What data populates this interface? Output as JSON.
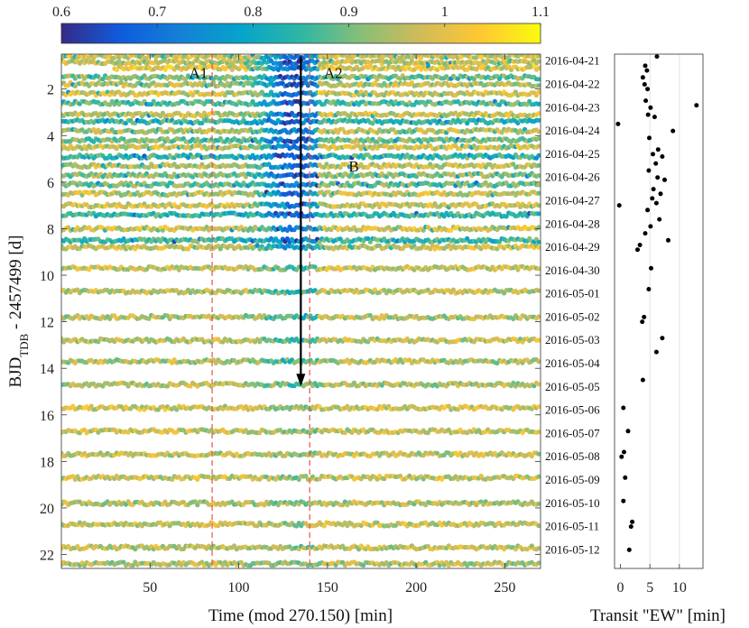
{
  "chart_data": [
    {
      "type": "heatmap",
      "name": "transit-waterfall",
      "xlabel": "Time (mod 270.150) [min]",
      "ylabel_main": "BJD",
      "ylabel_sub": "TDB",
      "ylabel_rest": " - 2457499 [d]",
      "xlim": [
        0,
        270.15
      ],
      "ylim": [
        0.5,
        22.6
      ],
      "x_ticks": [
        50,
        100,
        150,
        200,
        250
      ],
      "y_ticks": [
        2,
        4,
        6,
        8,
        10,
        12,
        14,
        16,
        18,
        20,
        22
      ],
      "colorbar": {
        "range": [
          0.6,
          1.1
        ],
        "ticks": [
          "0.6",
          "0.7",
          "0.8",
          "0.9",
          "1",
          "1.1"
        ],
        "tick_values": [
          0.6,
          0.7,
          0.8,
          0.9,
          1.0,
          1.1
        ],
        "colors": [
          "#352a87",
          "#0f5cdd",
          "#1481d6",
          "#06a4ca",
          "#2eb7a4",
          "#87bf77",
          "#d1bb59",
          "#fec832",
          "#f9fb0e"
        ]
      },
      "vlines": [
        85,
        140
      ],
      "vline_color": "#e8524a",
      "arrow": {
        "x": 135,
        "y_start": 0.6,
        "y_end": 14.7
      },
      "annotations": [
        {
          "label": "A1",
          "x": 72,
          "y": 1.3
        },
        {
          "label": "A2",
          "x": 148,
          "y": 1.3
        },
        {
          "label": "B",
          "x": 162,
          "y": 5.3
        }
      ],
      "dates": [
        "2016-04-21",
        "2016-04-22",
        "2016-04-23",
        "2016-04-24",
        "2016-04-25",
        "2016-04-26",
        "2016-04-27",
        "2016-04-28",
        "2016-04-29",
        "2016-04-30",
        "2016-05-01",
        "2016-05-02",
        "2016-05-03",
        "2016-05-04",
        "2016-05-05",
        "2016-05-06",
        "2016-05-07",
        "2016-05-08",
        "2016-05-09",
        "2016-05-10",
        "2016-05-11",
        "2016-05-12"
      ],
      "date_positions": [
        0.8,
        1.8,
        2.8,
        3.8,
        4.8,
        5.8,
        6.8,
        7.8,
        8.8,
        9.8,
        10.8,
        11.8,
        12.8,
        13.8,
        14.8,
        15.8,
        16.8,
        17.8,
        18.8,
        19.8,
        20.8,
        21.8
      ],
      "bands": [
        {
          "y": 0.6,
          "start": 0,
          "end": 270,
          "base": 0.98,
          "dip": 0.68
        },
        {
          "y": 0.85,
          "start": 0,
          "end": 270,
          "base": 0.96,
          "dip": 0.66
        },
        {
          "y": 1.1,
          "start": 30,
          "end": 270,
          "base": 1.0,
          "dip": 0.72
        },
        {
          "y": 1.5,
          "start": 0,
          "end": 270,
          "base": 0.9,
          "dip": 0.68
        },
        {
          "y": 1.8,
          "start": 0,
          "end": 270,
          "base": 0.95,
          "dip": 0.66
        },
        {
          "y": 2.2,
          "start": 0,
          "end": 270,
          "base": 0.98,
          "dip": 0.7
        },
        {
          "y": 2.6,
          "start": 0,
          "end": 270,
          "base": 0.88,
          "dip": 0.66
        },
        {
          "y": 3.1,
          "start": 0,
          "end": 270,
          "base": 0.97,
          "dip": 0.68
        },
        {
          "y": 3.4,
          "start": 0,
          "end": 270,
          "base": 0.85,
          "dip": 0.7
        },
        {
          "y": 3.8,
          "start": 0,
          "end": 270,
          "base": 0.95,
          "dip": 0.7
        },
        {
          "y": 4.2,
          "start": 0,
          "end": 270,
          "base": 0.9,
          "dip": 0.65
        },
        {
          "y": 4.5,
          "start": 0,
          "end": 270,
          "base": 0.98,
          "dip": 0.7
        },
        {
          "y": 4.9,
          "start": 0,
          "end": 270,
          "base": 0.85,
          "dip": 0.64
        },
        {
          "y": 5.3,
          "start": 0,
          "end": 270,
          "base": 0.96,
          "dip": 0.7
        },
        {
          "y": 5.7,
          "start": 0,
          "end": 270,
          "base": 0.92,
          "dip": 0.66
        },
        {
          "y": 6.1,
          "start": 0,
          "end": 270,
          "base": 0.9,
          "dip": 0.7
        },
        {
          "y": 6.5,
          "start": 0,
          "end": 270,
          "base": 0.97,
          "dip": 0.7
        },
        {
          "y": 7.0,
          "start": 0,
          "end": 270,
          "base": 0.98,
          "dip": 0.72
        },
        {
          "y": 7.4,
          "start": 0,
          "end": 270,
          "base": 0.85,
          "dip": 0.7
        },
        {
          "y": 8.0,
          "start": 0,
          "end": 270,
          "base": 0.98,
          "dip": 0.72
        },
        {
          "y": 8.5,
          "start": 0,
          "end": 270,
          "base": 0.86,
          "dip": 0.72
        },
        {
          "y": 8.8,
          "start": 0,
          "end": 270,
          "base": 0.97,
          "dip": 0.75
        },
        {
          "y": 9.7,
          "start": 0,
          "end": 270,
          "base": 0.97,
          "dip": 0.85
        },
        {
          "y": 10.7,
          "start": 0,
          "end": 270,
          "base": 0.96,
          "dip": 0.85
        },
        {
          "y": 11.8,
          "start": 0,
          "end": 270,
          "base": 0.95,
          "dip": 0.84
        },
        {
          "y": 12.8,
          "start": 0,
          "end": 270,
          "base": 0.96,
          "dip": 0.86
        },
        {
          "y": 13.7,
          "start": 0,
          "end": 270,
          "base": 0.95,
          "dip": 0.86
        },
        {
          "y": 14.7,
          "start": 0,
          "end": 270,
          "base": 0.95,
          "dip": 0.88
        },
        {
          "y": 15.7,
          "start": 0,
          "end": 270,
          "base": 0.98,
          "dip": 0.92
        },
        {
          "y": 16.7,
          "start": 0,
          "end": 270,
          "base": 0.97,
          "dip": 0.92
        },
        {
          "y": 17.7,
          "start": 0,
          "end": 270,
          "base": 0.96,
          "dip": 0.92
        },
        {
          "y": 18.7,
          "start": 0,
          "end": 270,
          "base": 0.97,
          "dip": 0.93
        },
        {
          "y": 19.8,
          "start": 0,
          "end": 270,
          "base": 0.95,
          "dip": 0.92
        },
        {
          "y": 20.7,
          "start": 0,
          "end": 270,
          "base": 0.97,
          "dip": 0.93
        },
        {
          "y": 21.7,
          "start": 0,
          "end": 270,
          "base": 0.96,
          "dip": 0.92
        },
        {
          "y": 22.4,
          "start": 0,
          "end": 270,
          "base": 0.95,
          "dip": 0.92
        }
      ]
    },
    {
      "type": "scatter",
      "name": "transit-ew",
      "xlabel": "Transit \"EW\" [min]",
      "xlim": [
        -1,
        14
      ],
      "x_ticks": [
        0,
        5,
        10
      ],
      "grid_x": [
        5,
        10
      ],
      "points": [
        {
          "x": 6.2,
          "y": 0.6
        },
        {
          "x": 4.2,
          "y": 1.0
        },
        {
          "x": 4.5,
          "y": 1.2
        },
        {
          "x": 3.8,
          "y": 1.5
        },
        {
          "x": 4.1,
          "y": 1.8
        },
        {
          "x": 4.6,
          "y": 2.0
        },
        {
          "x": 4.3,
          "y": 2.5
        },
        {
          "x": 12.9,
          "y": 2.7
        },
        {
          "x": 5.1,
          "y": 2.8
        },
        {
          "x": 4.7,
          "y": 3.1
        },
        {
          "x": 5.8,
          "y": 3.2
        },
        {
          "x": -0.4,
          "y": 3.5
        },
        {
          "x": 8.9,
          "y": 3.8
        },
        {
          "x": 4.9,
          "y": 4.1
        },
        {
          "x": 6.4,
          "y": 4.6
        },
        {
          "x": 5.5,
          "y": 4.8
        },
        {
          "x": 7.1,
          "y": 4.9
        },
        {
          "x": 6.0,
          "y": 5.2
        },
        {
          "x": 4.8,
          "y": 5.5
        },
        {
          "x": 6.3,
          "y": 5.8
        },
        {
          "x": 7.5,
          "y": 5.9
        },
        {
          "x": 5.6,
          "y": 6.3
        },
        {
          "x": 6.8,
          "y": 6.5
        },
        {
          "x": 5.4,
          "y": 6.7
        },
        {
          "x": 6.1,
          "y": 6.9
        },
        {
          "x": -0.2,
          "y": 7.0
        },
        {
          "x": 4.6,
          "y": 7.2
        },
        {
          "x": 6.6,
          "y": 7.6
        },
        {
          "x": 5.1,
          "y": 7.9
        },
        {
          "x": 4.2,
          "y": 8.2
        },
        {
          "x": 8.1,
          "y": 8.5
        },
        {
          "x": 3.3,
          "y": 8.7
        },
        {
          "x": 2.9,
          "y": 8.9
        },
        {
          "x": 5.2,
          "y": 9.7
        },
        {
          "x": 4.8,
          "y": 10.6
        },
        {
          "x": 4.0,
          "y": 11.8
        },
        {
          "x": 3.7,
          "y": 12.0
        },
        {
          "x": 7.1,
          "y": 12.7
        },
        {
          "x": 6.1,
          "y": 13.3
        },
        {
          "x": 3.8,
          "y": 14.5
        },
        {
          "x": 0.5,
          "y": 15.7
        },
        {
          "x": 1.3,
          "y": 16.7
        },
        {
          "x": 0.2,
          "y": 17.8
        },
        {
          "x": 0.6,
          "y": 17.6
        },
        {
          "x": 0.8,
          "y": 18.7
        },
        {
          "x": 0.5,
          "y": 19.7
        },
        {
          "x": 2.0,
          "y": 20.6
        },
        {
          "x": 1.8,
          "y": 20.8
        },
        {
          "x": 1.5,
          "y": 21.8
        }
      ]
    }
  ]
}
